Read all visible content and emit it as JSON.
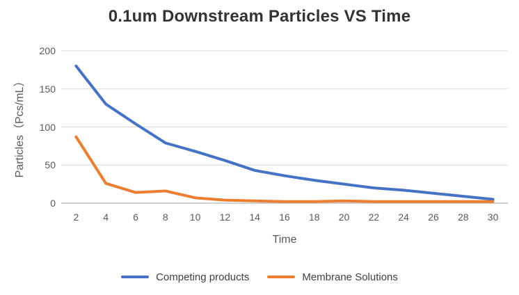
{
  "chart_data": {
    "type": "line",
    "title": "0.1um Downstream Particles VS Time",
    "xlabel": "Time",
    "ylabel": "Particles（Pcs/mL）",
    "categories": [
      2,
      4,
      6,
      8,
      10,
      12,
      14,
      16,
      18,
      20,
      22,
      24,
      26,
      28,
      30
    ],
    "series": [
      {
        "name": "Competing products",
        "color": "#4472C4",
        "values": [
          180,
          130,
          104,
          79,
          68,
          56,
          43,
          36,
          30,
          25,
          20,
          17,
          13,
          9,
          5
        ]
      },
      {
        "name": "Membrane Solutions",
        "color": "#ED7D31",
        "values": [
          87,
          26,
          14,
          16,
          7,
          4,
          3,
          2,
          2,
          3,
          2,
          2,
          2,
          2,
          2
        ]
      }
    ],
    "ylim": [
      0,
      200
    ],
    "yticks": [
      0,
      50,
      100,
      150,
      200
    ],
    "grid": true,
    "legend_position": "bottom"
  },
  "colors": {
    "gridline": "#D9D9D9",
    "axis_line": "#C0C0C0",
    "tick_text": "#595959",
    "title_text": "#333333",
    "legend_text": "#404040",
    "background": "#FFFFFF"
  }
}
